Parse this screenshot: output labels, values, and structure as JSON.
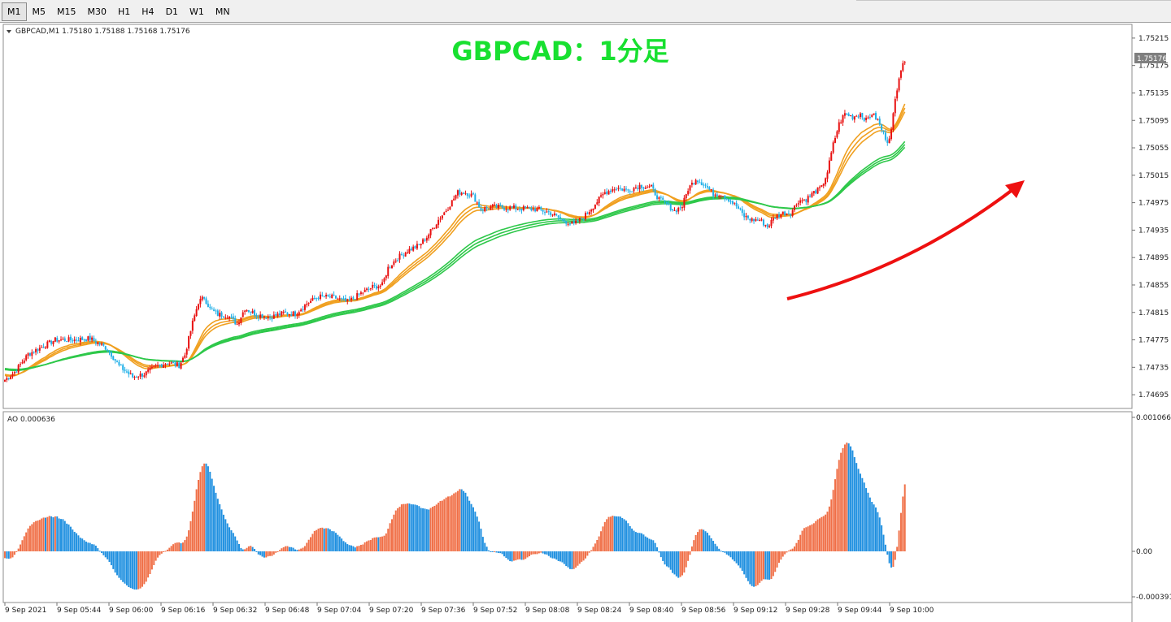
{
  "toolbar": {
    "timeframes": [
      "M1",
      "M5",
      "M15",
      "M30",
      "H1",
      "H4",
      "D1",
      "W1",
      "MN"
    ],
    "active": "M1"
  },
  "chart_data": [
    {
      "type": "candlestick",
      "symbol_info": "GBPCAD,M1  1.75180 1.75188 1.75168 1.75176",
      "title": "GBPCAD：1分足",
      "current_price": "1.75176",
      "ylim": [
        1.74675,
        1.75235
      ],
      "ytick_labels": [
        "1.75215",
        "1.75175",
        "1.75135",
        "1.75095",
        "1.75055",
        "1.75015",
        "1.74975",
        "1.74935",
        "1.74895",
        "1.74855",
        "1.74815",
        "1.74775",
        "1.74735",
        "1.74695"
      ],
      "ytick_values": [
        1.75215,
        1.75175,
        1.75135,
        1.75095,
        1.75055,
        1.75015,
        1.74975,
        1.74935,
        1.74895,
        1.74855,
        1.74815,
        1.74775,
        1.74735,
        1.74695
      ],
      "close_path": [
        [
          0,
          1.74717
        ],
        [
          5,
          1.74728
        ],
        [
          12,
          1.74754
        ],
        [
          18,
          1.74763
        ],
        [
          26,
          1.74775
        ],
        [
          36,
          1.74775
        ],
        [
          44,
          1.74777
        ],
        [
          53,
          1.74762
        ],
        [
          59,
          1.74737
        ],
        [
          66,
          1.74721
        ],
        [
          72,
          1.74725
        ],
        [
          78,
          1.74736
        ],
        [
          84,
          1.74742
        ],
        [
          90,
          1.74738
        ],
        [
          93,
          1.74753
        ],
        [
          97,
          1.748
        ],
        [
          100,
          1.7483
        ],
        [
          103,
          1.74837
        ],
        [
          106,
          1.7482
        ],
        [
          110,
          1.74812
        ],
        [
          115,
          1.74811
        ],
        [
          120,
          1.74798
        ],
        [
          124,
          1.74821
        ],
        [
          130,
          1.74812
        ],
        [
          137,
          1.74808
        ],
        [
          144,
          1.74814
        ],
        [
          150,
          1.74813
        ],
        [
          156,
          1.74828
        ],
        [
          162,
          1.74838
        ],
        [
          170,
          1.74837
        ],
        [
          177,
          1.7483
        ],
        [
          184,
          1.74843
        ],
        [
          190,
          1.74852
        ],
        [
          195,
          1.74855
        ],
        [
          198,
          1.7488
        ],
        [
          203,
          1.74895
        ],
        [
          208,
          1.74905
        ],
        [
          214,
          1.74913
        ],
        [
          218,
          1.74925
        ],
        [
          224,
          1.7495
        ],
        [
          229,
          1.74968
        ],
        [
          234,
          1.7499
        ],
        [
          238,
          1.7499
        ],
        [
          242,
          1.74985
        ],
        [
          246,
          1.74965
        ],
        [
          252,
          1.74969
        ],
        [
          258,
          1.74968
        ],
        [
          264,
          1.74967
        ],
        [
          270,
          1.74966
        ],
        [
          276,
          1.74965
        ],
        [
          282,
          1.7496
        ],
        [
          288,
          1.7495
        ],
        [
          294,
          1.74943
        ],
        [
          300,
          1.74957
        ],
        [
          304,
          1.7497
        ],
        [
          310,
          1.7499
        ],
        [
          316,
          1.74997
        ],
        [
          322,
          1.74993
        ],
        [
          328,
          1.75
        ],
        [
          334,
          1.74997
        ],
        [
          338,
          1.7498
        ],
        [
          342,
          1.74973
        ],
        [
          346,
          1.74963
        ],
        [
          350,
          1.7497
        ],
        [
          353,
          1.74995
        ],
        [
          357,
          1.7501
        ],
        [
          362,
          1.75
        ],
        [
          366,
          1.74988
        ],
        [
          370,
          1.74988
        ],
        [
          374,
          1.7498
        ],
        [
          378,
          1.7497
        ],
        [
          382,
          1.74955
        ],
        [
          386,
          1.7495
        ],
        [
          390,
          1.7495
        ],
        [
          394,
          1.7494
        ],
        [
          398,
          1.74955
        ],
        [
          402,
          1.7496
        ],
        [
          406,
          1.7496
        ],
        [
          410,
          1.74978
        ],
        [
          414,
          1.7498
        ],
        [
          418,
          1.7499
        ],
        [
          422,
          1.74997
        ],
        [
          425,
          1.7502
        ],
        [
          428,
          1.7506
        ],
        [
          431,
          1.7509
        ],
        [
          434,
          1.75105
        ],
        [
          438,
          1.751
        ],
        [
          442,
          1.75105
        ],
        [
          445,
          1.75095
        ],
        [
          448,
          1.75105
        ],
        [
          451,
          1.75095
        ],
        [
          454,
          1.75075
        ],
        [
          456,
          1.75065
        ],
        [
          458,
          1.7508
        ],
        [
          460,
          1.75125
        ],
        [
          462,
          1.7516
        ],
        [
          464,
          1.7518
        ],
        [
          465,
          1.75176
        ]
      ],
      "moving_averages": [
        {
          "color": "#f0a020",
          "periods": [
            20,
            24,
            28
          ]
        },
        {
          "color": "#2ec84a",
          "periods": [
            70,
            76,
            82
          ]
        }
      ],
      "bull_color": "#e81010",
      "bear_color": "#20b0e8",
      "xtick_labels": [
        "9 Sep 2021",
        "9 Sep 05:44",
        "9 Sep 06:00",
        "9 Sep 06:16",
        "9 Sep 06:32",
        "9 Sep 06:48",
        "9 Sep 07:04",
        "9 Sep 07:20",
        "9 Sep 07:36",
        "9 Sep 07:52",
        "9 Sep 08:08",
        "9 Sep 08:24",
        "9 Sep 08:40",
        "9 Sep 08:56",
        "9 Sep 09:12",
        "9 Sep 09:28",
        "9 Sep 09:44",
        "9 Sep 10:00"
      ]
    },
    {
      "type": "bar",
      "label": "AO 0.000636",
      "ylim": [
        -0.000391,
        0.001066
      ],
      "ytick_labels": [
        "0.001066",
        "0.00",
        "-0.000391"
      ],
      "up_color": "#f07048",
      "down_color": "#2090e0"
    }
  ],
  "arrow_color": "#ee1010"
}
